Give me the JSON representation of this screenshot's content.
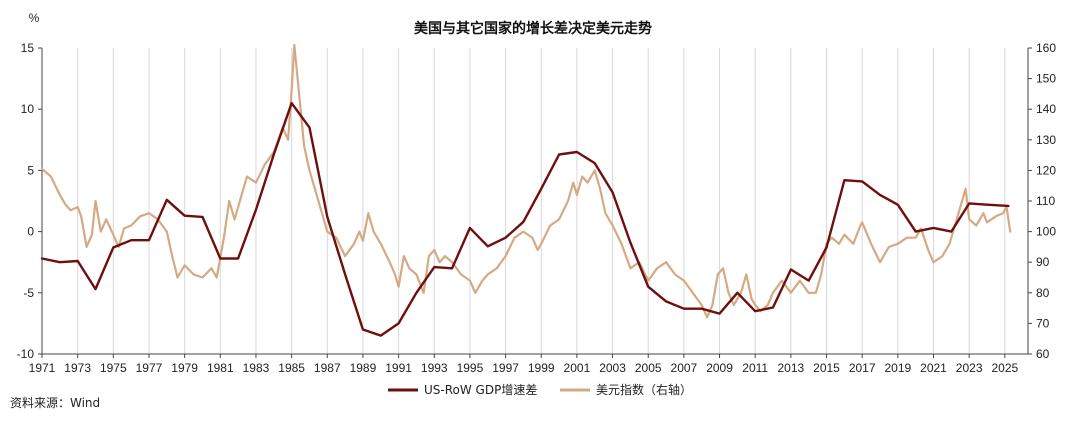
{
  "chart_data": {
    "type": "line",
    "title": "美国与其它国家的增长差决定美元走势",
    "source": "资料来源：Wind",
    "left_unit": "%",
    "xlim": [
      1971,
      2026.3
    ],
    "ylim_left": [
      -10,
      15
    ],
    "ylim_right": [
      60,
      160
    ],
    "yticks_left": [
      -10,
      -5,
      0,
      5,
      10,
      15
    ],
    "yticks_right": [
      60,
      70,
      80,
      90,
      100,
      110,
      120,
      130,
      140,
      150,
      160
    ],
    "xticks": [
      1971,
      1973,
      1975,
      1977,
      1979,
      1981,
      1983,
      1985,
      1987,
      1989,
      1991,
      1993,
      1995,
      1997,
      1999,
      2001,
      2003,
      2005,
      2007,
      2009,
      2011,
      2013,
      2015,
      2017,
      2019,
      2021,
      2023,
      2025
    ],
    "grid_vertical": true,
    "legend_position": "bottom",
    "series": [
      {
        "name": "US-RoW GDP增速差",
        "axis": "left",
        "color": "#6e0f0f",
        "points": [
          [
            1971,
            -2.2
          ],
          [
            1972,
            -2.5
          ],
          [
            1973,
            -2.4
          ],
          [
            1974,
            -4.7
          ],
          [
            1975,
            -1.3
          ],
          [
            1976,
            -0.7
          ],
          [
            1977,
            -0.7
          ],
          [
            1978,
            2.6
          ],
          [
            1979,
            1.3
          ],
          [
            1980,
            1.2
          ],
          [
            1981,
            -2.2
          ],
          [
            1982,
            -2.2
          ],
          [
            1983,
            1.8
          ],
          [
            1984,
            6.3
          ],
          [
            1985,
            10.5
          ],
          [
            1986,
            8.5
          ],
          [
            1987,
            1.2
          ],
          [
            1988,
            -3.5
          ],
          [
            1989,
            -8.0
          ],
          [
            1990,
            -8.5
          ],
          [
            1991,
            -7.5
          ],
          [
            1992,
            -5.0
          ],
          [
            1993,
            -2.9
          ],
          [
            1994,
            -3.0
          ],
          [
            1995,
            0.3
          ],
          [
            1996,
            -1.2
          ],
          [
            1997,
            -0.5
          ],
          [
            1998,
            0.8
          ],
          [
            1999,
            3.5
          ],
          [
            2000,
            6.3
          ],
          [
            2001,
            6.5
          ],
          [
            2002,
            5.6
          ],
          [
            2003,
            3.2
          ],
          [
            2004,
            -0.9
          ],
          [
            2005,
            -4.5
          ],
          [
            2006,
            -5.7
          ],
          [
            2007,
            -6.3
          ],
          [
            2008,
            -6.3
          ],
          [
            2009,
            -6.7
          ],
          [
            2010,
            -5.0
          ],
          [
            2011,
            -6.5
          ],
          [
            2012,
            -6.2
          ],
          [
            2013,
            -3.1
          ],
          [
            2014,
            -4.0
          ],
          [
            2015,
            -1.3
          ],
          [
            2016,
            4.2
          ],
          [
            2017,
            4.1
          ],
          [
            2018,
            3.0
          ],
          [
            2019,
            2.2
          ],
          [
            2020,
            0.0
          ],
          [
            2021,
            0.3
          ],
          [
            2022,
            0.0
          ],
          [
            2023,
            2.3
          ],
          [
            2024,
            2.2
          ],
          [
            2025.2,
            2.1
          ]
        ]
      },
      {
        "name": "美元指数（右轴）",
        "axis": "right",
        "color": "#d4aa84",
        "points": [
          [
            1971.0,
            120.5
          ],
          [
            1971.5,
            118
          ],
          [
            1972.0,
            112
          ],
          [
            1972.3,
            109
          ],
          [
            1972.6,
            107
          ],
          [
            1973.0,
            108
          ],
          [
            1973.2,
            105
          ],
          [
            1973.5,
            95
          ],
          [
            1973.8,
            99
          ],
          [
            1974.0,
            110
          ],
          [
            1974.3,
            100
          ],
          [
            1974.6,
            104
          ],
          [
            1975.0,
            99
          ],
          [
            1975.3,
            95
          ],
          [
            1975.6,
            101
          ],
          [
            1976.0,
            102
          ],
          [
            1976.5,
            105
          ],
          [
            1977.0,
            106
          ],
          [
            1977.5,
            104
          ],
          [
            1978.0,
            100
          ],
          [
            1978.3,
            92
          ],
          [
            1978.6,
            85
          ],
          [
            1979.0,
            89
          ],
          [
            1979.5,
            86
          ],
          [
            1980.0,
            85
          ],
          [
            1980.5,
            88
          ],
          [
            1980.8,
            85
          ],
          [
            1981.2,
            98
          ],
          [
            1981.5,
            110
          ],
          [
            1981.8,
            104
          ],
          [
            1982.0,
            108
          ],
          [
            1982.5,
            118
          ],
          [
            1983.0,
            116
          ],
          [
            1983.5,
            122
          ],
          [
            1984.0,
            126
          ],
          [
            1984.5,
            134
          ],
          [
            1984.8,
            130
          ],
          [
            1985.0,
            146
          ],
          [
            1985.15,
            161
          ],
          [
            1985.4,
            146
          ],
          [
            1985.7,
            128
          ],
          [
            1986.0,
            120
          ],
          [
            1986.5,
            110
          ],
          [
            1987.0,
            100
          ],
          [
            1987.5,
            98
          ],
          [
            1988.0,
            92
          ],
          [
            1988.5,
            96
          ],
          [
            1988.8,
            100
          ],
          [
            1989.0,
            97
          ],
          [
            1989.3,
            106
          ],
          [
            1989.6,
            100
          ],
          [
            1990.0,
            96
          ],
          [
            1990.5,
            90
          ],
          [
            1990.8,
            86
          ],
          [
            1991.0,
            82
          ],
          [
            1991.3,
            92
          ],
          [
            1991.6,
            88
          ],
          [
            1992.0,
            86
          ],
          [
            1992.4,
            80
          ],
          [
            1992.7,
            92
          ],
          [
            1993.0,
            94
          ],
          [
            1993.3,
            90
          ],
          [
            1993.6,
            92
          ],
          [
            1994.0,
            90
          ],
          [
            1994.5,
            86
          ],
          [
            1995.0,
            84
          ],
          [
            1995.3,
            80
          ],
          [
            1995.7,
            84
          ],
          [
            1996.0,
            86
          ],
          [
            1996.5,
            88
          ],
          [
            1997.0,
            92
          ],
          [
            1997.5,
            98
          ],
          [
            1998.0,
            100
          ],
          [
            1998.5,
            98
          ],
          [
            1998.8,
            94
          ],
          [
            1999.0,
            96
          ],
          [
            1999.5,
            102
          ],
          [
            2000.0,
            104
          ],
          [
            2000.5,
            110
          ],
          [
            2000.8,
            116
          ],
          [
            2001.0,
            112
          ],
          [
            2001.3,
            118
          ],
          [
            2001.6,
            116
          ],
          [
            2002.0,
            120
          ],
          [
            2002.3,
            114
          ],
          [
            2002.6,
            106
          ],
          [
            2003.0,
            102
          ],
          [
            2003.5,
            96
          ],
          [
            2004.0,
            88
          ],
          [
            2004.5,
            90
          ],
          [
            2005.0,
            84
          ],
          [
            2005.5,
            88
          ],
          [
            2006.0,
            90
          ],
          [
            2006.5,
            86
          ],
          [
            2007.0,
            84
          ],
          [
            2007.5,
            80
          ],
          [
            2008.0,
            76
          ],
          [
            2008.3,
            72
          ],
          [
            2008.6,
            76
          ],
          [
            2008.9,
            86
          ],
          [
            2009.2,
            88
          ],
          [
            2009.5,
            80
          ],
          [
            2009.8,
            76
          ],
          [
            2010.2,
            80
          ],
          [
            2010.5,
            86
          ],
          [
            2010.8,
            78
          ],
          [
            2011.0,
            76
          ],
          [
            2011.3,
            74
          ],
          [
            2011.7,
            76
          ],
          [
            2012.0,
            80
          ],
          [
            2012.5,
            84
          ],
          [
            2013.0,
            80
          ],
          [
            2013.5,
            84
          ],
          [
            2014.0,
            80
          ],
          [
            2014.4,
            80
          ],
          [
            2014.7,
            86
          ],
          [
            2015.0,
            96
          ],
          [
            2015.3,
            98
          ],
          [
            2015.7,
            96
          ],
          [
            2016.0,
            99
          ],
          [
            2016.5,
            96
          ],
          [
            2016.9,
            102
          ],
          [
            2017.0,
            103
          ],
          [
            2017.5,
            96
          ],
          [
            2018.0,
            90
          ],
          [
            2018.5,
            95
          ],
          [
            2019.0,
            96
          ],
          [
            2019.5,
            98
          ],
          [
            2020.0,
            98
          ],
          [
            2020.3,
            101
          ],
          [
            2020.7,
            94
          ],
          [
            2021.0,
            90
          ],
          [
            2021.5,
            92
          ],
          [
            2021.9,
            96
          ],
          [
            2022.3,
            104
          ],
          [
            2022.8,
            114
          ],
          [
            2023.0,
            104
          ],
          [
            2023.4,
            102
          ],
          [
            2023.8,
            106
          ],
          [
            2024.0,
            103
          ],
          [
            2024.5,
            105
          ],
          [
            2024.9,
            106
          ],
          [
            2025.1,
            108
          ],
          [
            2025.3,
            100
          ]
        ]
      }
    ]
  }
}
